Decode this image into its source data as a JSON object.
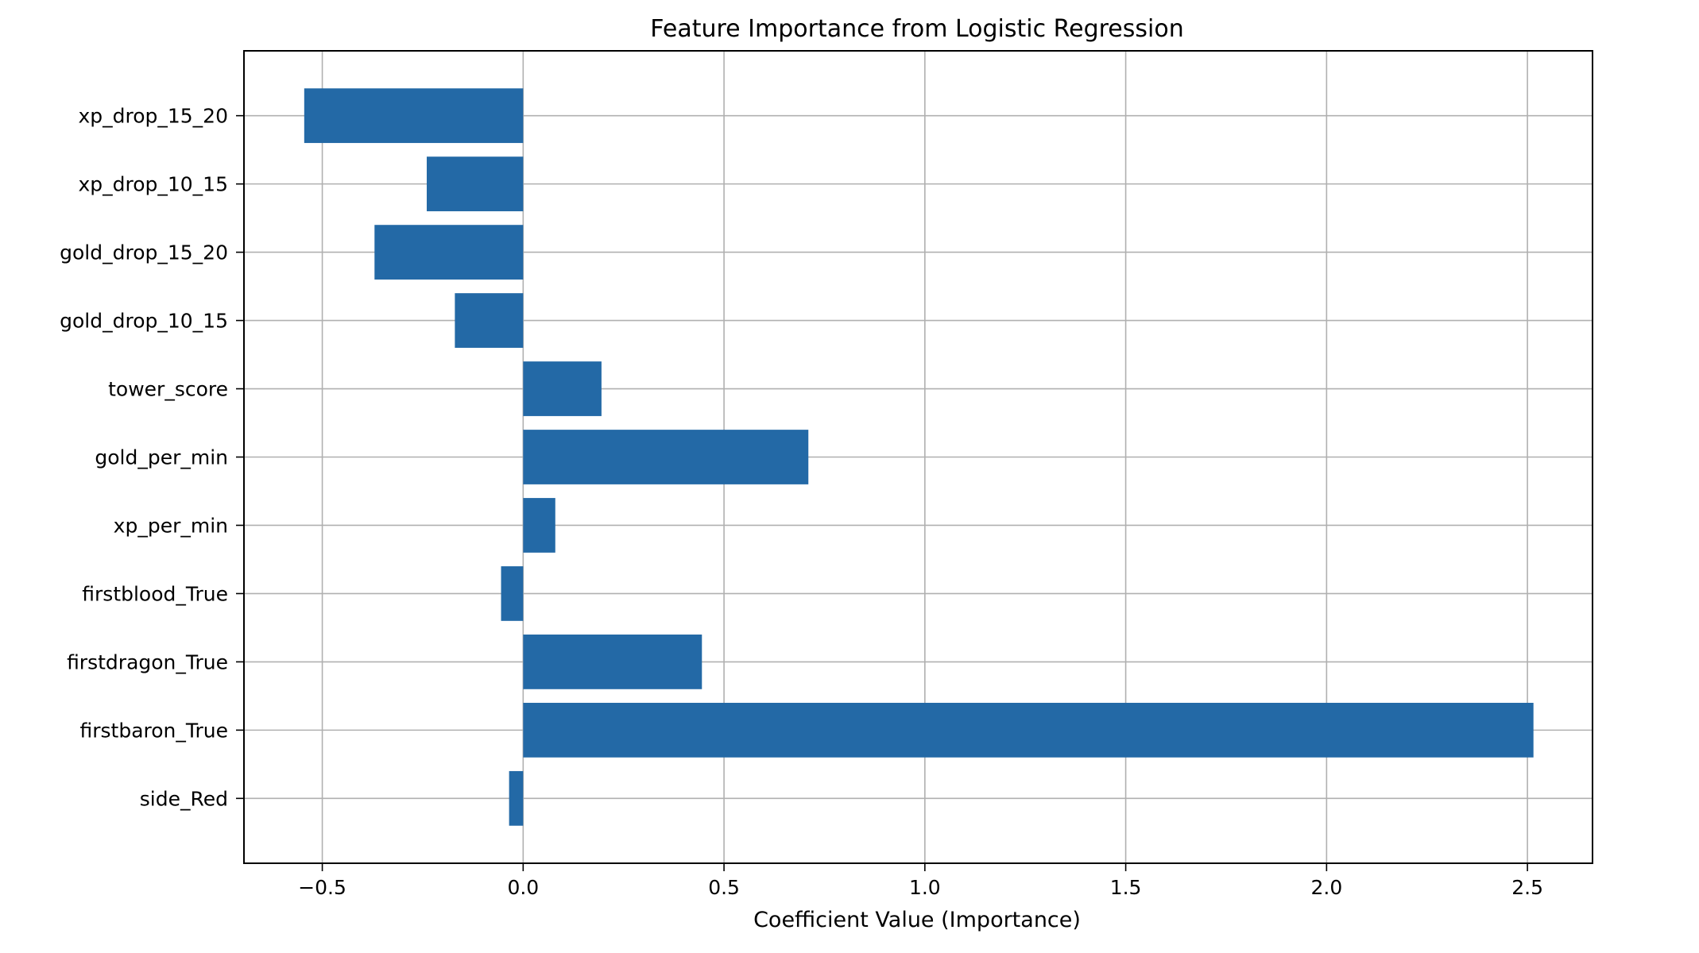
{
  "chart_data": {
    "type": "bar",
    "orientation": "horizontal",
    "title": "Feature Importance from Logistic Regression",
    "xlabel": "Coefficient Value (Importance)",
    "ylabel": "",
    "xlim": [
      -0.695,
      2.662
    ],
    "xticks": [
      -0.5,
      0.0,
      0.5,
      1.0,
      1.5,
      2.0,
      2.5
    ],
    "xtick_labels": [
      "−0.5",
      "0.0",
      "0.5",
      "1.0",
      "1.5",
      "2.0",
      "2.5"
    ],
    "grid": true,
    "bar_color": "#2369a6",
    "categories": [
      "xp_drop_15_20",
      "xp_drop_10_15",
      "gold_drop_15_20",
      "gold_drop_10_15",
      "tower_score",
      "gold_per_min",
      "xp_per_min",
      "firstblood_True",
      "firstdragon_True",
      "firstbaron_True",
      "side_Red"
    ],
    "values": [
      -0.545,
      -0.24,
      -0.37,
      -0.17,
      0.195,
      0.71,
      0.08,
      -0.055,
      0.445,
      2.515,
      -0.035
    ]
  }
}
